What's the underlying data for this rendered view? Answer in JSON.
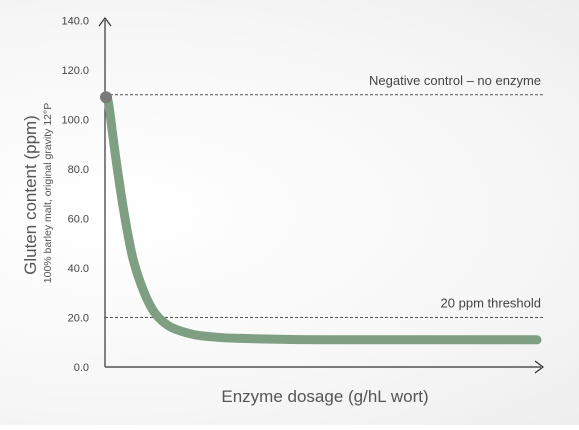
{
  "chart_data": {
    "type": "line",
    "title": "",
    "xlabel": "Enzyme dosage (g/hL wort)",
    "ylabel": "Gluten content (ppm)",
    "ylabel_sub": "100% barley malt, original gravity 12°P",
    "ylim": [
      0,
      140
    ],
    "y_ticks": [
      "0.0",
      "20.0",
      "40.0",
      "60.0",
      "80.0",
      "100.0",
      "120.0",
      "140.0"
    ],
    "x_ticks_shown": false,
    "grid": false,
    "series": [
      {
        "color": "#7f9f83",
        "x": [
          0,
          0.005,
          0.02,
          0.04,
          0.06,
          0.08,
          0.1,
          0.12,
          0.15,
          0.2,
          0.25,
          0.3,
          0.4,
          0.5,
          0.6,
          0.7,
          0.8,
          0.9,
          1.0
        ],
        "y": [
          109,
          105,
          85,
          62,
          44,
          33,
          25,
          20,
          16,
          13.2,
          12.1,
          11.6,
          11.2,
          11.0,
          11.0,
          11.0,
          11.0,
          11.0,
          11.0
        ]
      }
    ],
    "reference_lines": [
      {
        "label": "Negative control – no enzyme",
        "y": 110
      },
      {
        "label": "20 ppm threshold",
        "y": 20
      }
    ],
    "marker": {
      "x": 0,
      "y": 109,
      "color": "#7a7a7a"
    }
  }
}
